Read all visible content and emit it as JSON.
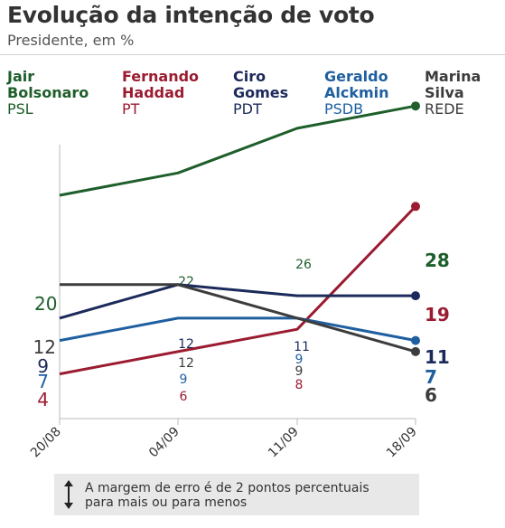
{
  "header": {
    "title": "Evolução da intenção de voto",
    "subtitle": "Presidente, em %"
  },
  "legend": [
    {
      "line1": "Jair",
      "line2": "Bolsonaro",
      "party": "PSL",
      "color": "#1d5e2a"
    },
    {
      "line1": "Fernando",
      "line2": "Haddad",
      "party": "PT",
      "color": "#9b1b30"
    },
    {
      "line1": "Ciro",
      "line2": "Gomes",
      "party": "PDT",
      "color": "#1b2a5a"
    },
    {
      "line1": "Geraldo",
      "line2": "Alckmin",
      "party": "PSDB",
      "color": "#1f5fa0"
    },
    {
      "line1": "Marina",
      "line2": "Silva",
      "party": "REDE",
      "color": "#3c3c3c"
    }
  ],
  "chart_data": {
    "type": "line",
    "x": [
      "20/08",
      "04/09",
      "11/09",
      "18/09"
    ],
    "ylim": [
      0,
      30
    ],
    "grid": false,
    "series": [
      {
        "name": "Jair Bolsonaro",
        "color": "#1d5e2a",
        "values": [
          20,
          22,
          26,
          28
        ],
        "labels": [
          "20",
          "22",
          "26",
          "28"
        ]
      },
      {
        "name": "Fernando Haddad",
        "color": "#9b1b30",
        "values": [
          4,
          6,
          8,
          19
        ],
        "labels": [
          "4",
          "6",
          "8",
          "19"
        ]
      },
      {
        "name": "Ciro Gomes",
        "color": "#1b2a5a",
        "values": [
          9,
          12,
          11,
          11
        ],
        "labels": [
          "9",
          "12",
          "11",
          "11"
        ]
      },
      {
        "name": "Geraldo Alckmin",
        "color": "#1f5fa0",
        "values": [
          7,
          9,
          9,
          7
        ],
        "labels": [
          "7",
          "9",
          "9",
          "7"
        ]
      },
      {
        "name": "Marina Silva",
        "color": "#3c3c3c",
        "values": [
          12,
          12,
          9,
          6
        ],
        "labels": [
          "12",
          "12",
          "9",
          "6"
        ]
      }
    ]
  },
  "note": {
    "line1": "A margem de erro é de 2 pontos percentuais",
    "line2": "para mais ou para menos",
    "icon": "double-arrow-vertical-icon"
  }
}
